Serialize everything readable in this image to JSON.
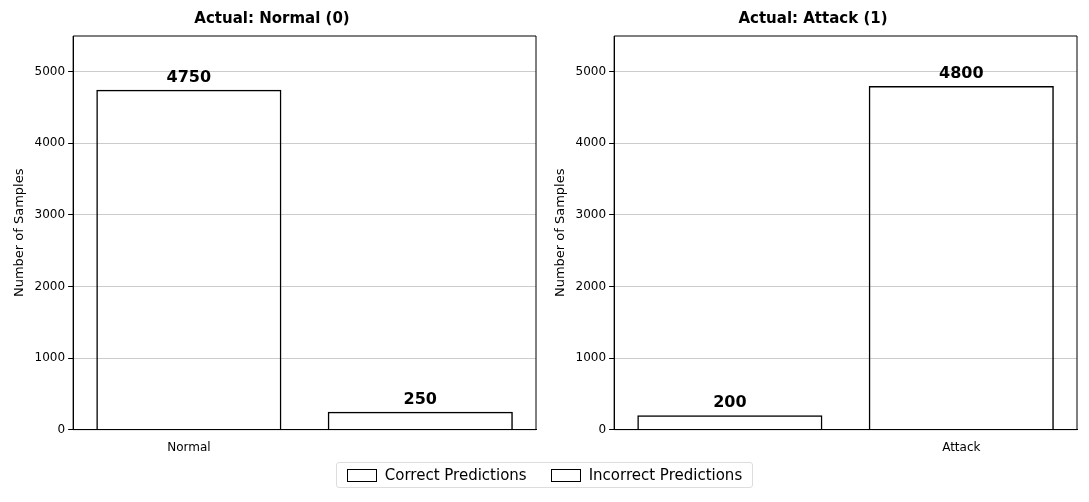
{
  "chart_data": [
    {
      "type": "bar",
      "title": "Actual: Normal (0)",
      "ylabel": "Number of Samples",
      "categories": [
        "Normal",
        null
      ],
      "series": [
        {
          "name": "Correct Predictions",
          "color": "#000000",
          "values": [
            4750,
            null
          ]
        },
        {
          "name": "Incorrect Predictions",
          "color": "#000000",
          "values": [
            null,
            250
          ]
        }
      ],
      "ylim": [
        0,
        5500
      ],
      "yticks": [
        0,
        1000,
        2000,
        3000,
        4000,
        5000
      ],
      "grid": "y",
      "data_labels": true,
      "legend": "bottom"
    },
    {
      "type": "bar",
      "title": "Actual: Attack (1)",
      "ylabel": "Number of Samples",
      "categories": [
        null,
        "Attack"
      ],
      "series": [
        {
          "name": "Incorrect Predictions",
          "color": "#000000",
          "values": [
            200,
            null
          ]
        },
        {
          "name": "Correct Predictions",
          "color": "#000000",
          "values": [
            null,
            4800
          ]
        }
      ],
      "ylim": [
        0,
        5500
      ],
      "yticks": [
        0,
        1000,
        2000,
        3000,
        4000,
        5000
      ],
      "grid": "y",
      "data_labels": true
    }
  ]
}
